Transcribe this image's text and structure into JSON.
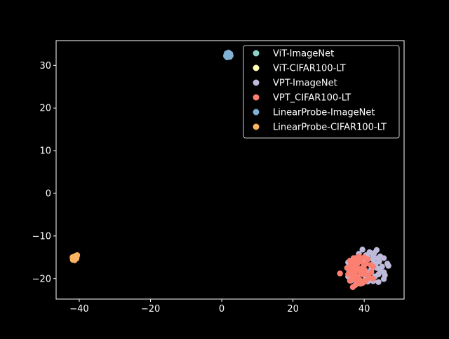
{
  "chart_data": {
    "type": "scatter",
    "title": "",
    "xlabel": "",
    "ylabel": "",
    "xlim": [
      -46.5,
      51.2
    ],
    "ylim": [
      -24.8,
      35.8
    ],
    "xticks": [
      -40,
      -20,
      0,
      20,
      40
    ],
    "yticks": [
      -20,
      -10,
      0,
      10,
      20,
      30
    ],
    "xtick_labels": [
      "−40",
      "−20",
      "0",
      "20",
      "40"
    ],
    "ytick_labels": [
      "−20",
      "−10",
      "0",
      "10",
      "20",
      "30"
    ],
    "grid": false,
    "legend": "top-right",
    "series": [
      {
        "name": "ViT-ImageNet",
        "color": "#8dd3c7",
        "points": [
          [
            1.6,
            32.6
          ],
          [
            1.8,
            32.3
          ],
          [
            2.0,
            32.8
          ],
          [
            1.5,
            32.2
          ],
          [
            2.1,
            32.5
          ]
        ]
      },
      {
        "name": "ViT-CIFAR100-LT",
        "color": "#ffffb3",
        "points": [
          [
            -41.3,
            -15.1
          ],
          [
            -41.0,
            -14.9
          ],
          [
            -41.5,
            -15.3
          ],
          [
            -40.8,
            -14.8
          ],
          [
            -41.2,
            -15.4
          ]
        ]
      },
      {
        "name": "VPT-ImageNet",
        "color": "#bebada",
        "points": [
          [
            39.5,
            -13.2
          ],
          [
            41.5,
            -13.8
          ],
          [
            43.5,
            -13.3
          ],
          [
            42.5,
            -14.5
          ],
          [
            44.5,
            -14.8
          ],
          [
            45.5,
            -15.2
          ],
          [
            46.5,
            -16.5
          ],
          [
            46.8,
            -17.0
          ],
          [
            45.5,
            -18.5
          ],
          [
            45.8,
            -19.2
          ],
          [
            45.5,
            -20.1
          ],
          [
            44.0,
            -20.8
          ],
          [
            42.5,
            -20.6
          ],
          [
            41.0,
            -20.7
          ],
          [
            39.5,
            -20.9
          ],
          [
            38.0,
            -21.2
          ],
          [
            36.2,
            -20.5
          ],
          [
            35.5,
            -19.5
          ],
          [
            35.8,
            -18.2
          ],
          [
            35.5,
            -16.2
          ],
          [
            37.5,
            -15.2
          ],
          [
            40.5,
            -14.5
          ],
          [
            42.5,
            -15.5
          ],
          [
            44.2,
            -16.0
          ],
          [
            43.5,
            -17.5
          ],
          [
            44.5,
            -18.2
          ],
          [
            43.0,
            -19.5
          ],
          [
            42.0,
            -16.8
          ],
          [
            41.5,
            -18.5
          ],
          [
            40.5,
            -19.8
          ],
          [
            43.8,
            -15.2
          ],
          [
            45.0,
            -17.2
          ],
          [
            42.8,
            -14.0
          ],
          [
            41.0,
            -15.0
          ],
          [
            44.0,
            -19.0
          ],
          [
            38.5,
            -14.2
          ],
          [
            39.8,
            -16.2
          ],
          [
            42.0,
            -17.8
          ],
          [
            43.2,
            -16.5
          ],
          [
            41.2,
            -20.0
          ]
        ]
      },
      {
        "name": "VPT_CIFAR100-LT",
        "color": "#fb8072",
        "points": [
          [
            33.2,
            -18.8
          ],
          [
            35.2,
            -17.5
          ],
          [
            36.0,
            -15.8
          ],
          [
            37.0,
            -15.2
          ],
          [
            38.5,
            -14.8
          ],
          [
            40.0,
            -15.0
          ],
          [
            41.0,
            -15.5
          ],
          [
            40.5,
            -16.5
          ],
          [
            42.5,
            -17.2
          ],
          [
            42.0,
            -18.5
          ],
          [
            41.5,
            -19.8
          ],
          [
            42.5,
            -20.0
          ],
          [
            40.5,
            -20.5
          ],
          [
            39.0,
            -21.2
          ],
          [
            37.5,
            -21.5
          ],
          [
            36.8,
            -22.0
          ],
          [
            36.0,
            -20.5
          ],
          [
            35.5,
            -19.0
          ],
          [
            36.5,
            -18.0
          ],
          [
            37.5,
            -17.0
          ],
          [
            38.5,
            -18.2
          ],
          [
            39.5,
            -17.5
          ],
          [
            38.0,
            -19.5
          ],
          [
            39.5,
            -19.0
          ],
          [
            37.0,
            -19.8
          ],
          [
            36.2,
            -16.8
          ],
          [
            38.8,
            -16.0
          ],
          [
            40.2,
            -18.0
          ],
          [
            37.8,
            -20.8
          ],
          [
            39.0,
            -15.8
          ],
          [
            36.8,
            -16.2
          ],
          [
            38.2,
            -17.6
          ],
          [
            40.8,
            -19.2
          ],
          [
            37.2,
            -18.6
          ],
          [
            38.6,
            -20.2
          ],
          [
            39.8,
            -20.6
          ],
          [
            35.8,
            -17.8
          ],
          [
            41.8,
            -16.8
          ],
          [
            37.6,
            -15.6
          ],
          [
            39.2,
            -18.8
          ],
          [
            38.0,
            -16.6
          ],
          [
            36.4,
            -19.2
          ],
          [
            40.0,
            -16.8
          ],
          [
            37.4,
            -17.4
          ],
          [
            39.6,
            -21.0
          ]
        ]
      },
      {
        "name": "LinearProbe-ImageNet",
        "color": "#80b1d3",
        "points": [
          [
            1.8,
            32.6
          ],
          [
            2.2,
            32.3
          ],
          [
            1.4,
            32.8
          ],
          [
            2.0,
            32.0
          ],
          [
            1.6,
            32.4
          ],
          [
            2.4,
            32.7
          ],
          [
            1.2,
            32.2
          ],
          [
            1.8,
            32.9
          ],
          [
            2.3,
            32.0
          ],
          [
            1.5,
            31.9
          ],
          [
            1.9,
            33.0
          ],
          [
            1.3,
            32.5
          ],
          [
            2.5,
            32.3
          ],
          [
            2.0,
            32.5
          ]
        ]
      },
      {
        "name": "LinearProbe-CIFAR100-LT",
        "color": "#fdb462",
        "points": [
          [
            -41.5,
            -15.2
          ],
          [
            -41.0,
            -14.8
          ],
          [
            -41.8,
            -15.6
          ],
          [
            -40.6,
            -14.5
          ],
          [
            -41.2,
            -15.0
          ],
          [
            -41.6,
            -14.9
          ],
          [
            -40.8,
            -15.3
          ],
          [
            -41.9,
            -15.0
          ],
          [
            -41.3,
            -15.7
          ],
          [
            -40.9,
            -14.6
          ],
          [
            -41.4,
            -15.4
          ],
          [
            -41.1,
            -15.1
          ],
          [
            -40.7,
            -14.8
          ],
          [
            -41.7,
            -15.3
          ]
        ]
      }
    ]
  }
}
